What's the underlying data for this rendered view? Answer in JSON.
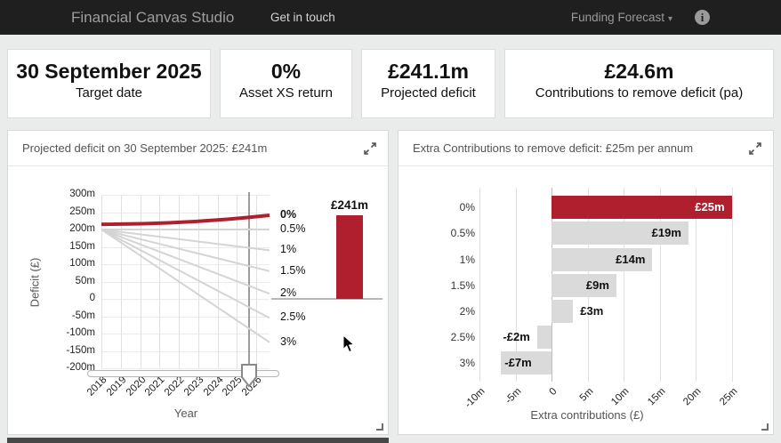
{
  "navbar": {
    "title": "Financial Canvas Studio",
    "link": "Get in touch",
    "dropdown": "Funding Forecast",
    "caret": "▾",
    "info_glyph": "i"
  },
  "stats": [
    {
      "value": "30 September 2025",
      "label": "Target date"
    },
    {
      "value": "0%",
      "label": "Asset XS return"
    },
    {
      "value": "£241.1m",
      "label": "Projected deficit"
    },
    {
      "value": "£24.6m",
      "label": "Contributions to remove deficit (pa)"
    }
  ],
  "colors": {
    "accent_red": "#B01F2E",
    "bar_gray": "#DADADA",
    "line_gray": "#D4D4D4",
    "navbar_bg": "#1F1F1F"
  },
  "chart_data": [
    {
      "type": "line",
      "title": "Projected deficit on 30 September 2025: £241m",
      "xlabel": "Year",
      "ylabel": "Deficit (£)",
      "x_ticks": [
        "2018",
        "2019",
        "2020",
        "2021",
        "2022",
        "2023",
        "2024",
        "2025",
        "2026"
      ],
      "y_ticks": [
        "300m",
        "250m",
        "200m",
        "150m",
        "100m",
        "50m",
        "0",
        "-50m",
        "-100m",
        "-150m",
        "-200m"
      ],
      "xlim": [
        2018,
        2026
      ],
      "ylim": [
        -200,
        300
      ],
      "grid": true,
      "legend_position": "right-of-plot",
      "series": [
        {
          "name": "0%",
          "start": 210,
          "end": 241,
          "highlight": true
        },
        {
          "name": "0.5%",
          "start": 200,
          "end": 200,
          "highlight": false
        },
        {
          "name": "1%",
          "start": 200,
          "end": 140,
          "highlight": false
        },
        {
          "name": "1.5%",
          "start": 200,
          "end": 80,
          "highlight": false
        },
        {
          "name": "2%",
          "start": 200,
          "end": 15,
          "highlight": false
        },
        {
          "name": "2.5%",
          "start": 200,
          "end": -55,
          "highlight": false
        },
        {
          "name": "3%",
          "start": 200,
          "end": -125,
          "highlight": false
        }
      ],
      "bar": {
        "value": 241,
        "label": "£241m"
      },
      "slider_position_year": 2025.75
    },
    {
      "type": "bar",
      "title": "Extra Contributions to remove deficit: £25m per annum",
      "xlabel": "Extra contributions (£)",
      "categories": [
        "0%",
        "0.5%",
        "1%",
        "1.5%",
        "2%",
        "2.5%",
        "3%"
      ],
      "values": [
        25,
        19,
        14,
        9,
        3,
        -2,
        -7
      ],
      "labels": [
        "£25m",
        "£19m",
        "£14m",
        "£9m",
        "£3m",
        "-£2m",
        "-£7m"
      ],
      "x_ticks": [
        "-10m",
        "-5m",
        "0",
        "5m",
        "10m",
        "15m",
        "20m",
        "25m"
      ],
      "xlim": [
        -10,
        27.5
      ],
      "grid": true,
      "orientation": "horizontal"
    }
  ]
}
